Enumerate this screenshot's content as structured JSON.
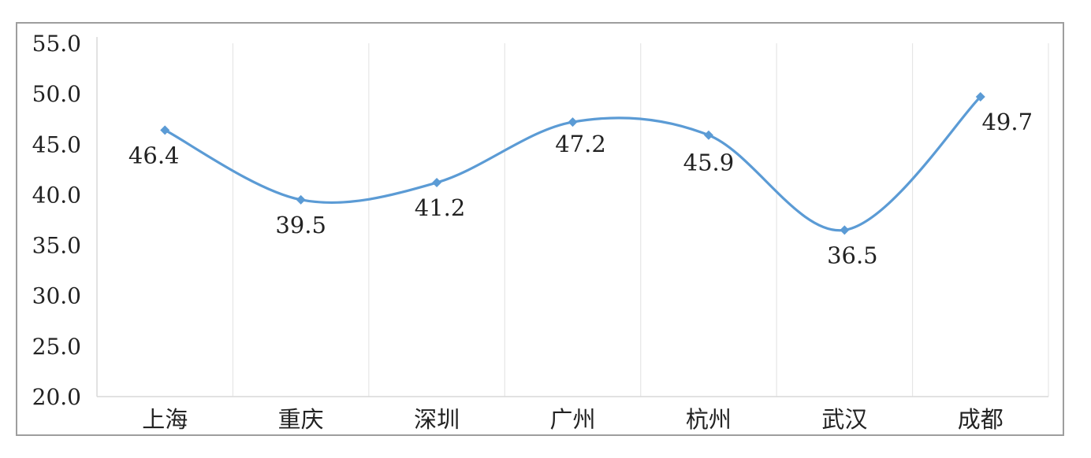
{
  "chart_data": {
    "type": "line",
    "smooth": true,
    "title": "",
    "xlabel": "",
    "ylabel": "",
    "categories": [
      "上海",
      "重庆",
      "深圳",
      "广州",
      "杭州",
      "武汉",
      "成都"
    ],
    "series": [
      {
        "values": [
          46.4,
          39.5,
          41.2,
          47.2,
          45.9,
          36.5,
          49.7
        ],
        "color": "#5b9bd5",
        "marker": "diamond"
      }
    ],
    "data_labels": [
      "46.4",
      "39.5",
      "41.2",
      "47.2",
      "45.9",
      "36.5",
      "49.7"
    ],
    "y_ticks": [
      "55.0",
      "50.0",
      "45.0",
      "40.0",
      "35.0",
      "30.0",
      "25.0",
      "20.0"
    ],
    "ylim": [
      20,
      55
    ],
    "grid": "vertical",
    "legend": "none",
    "axis_color": "#d9d9d9",
    "grid_color": "#e6e6e6"
  }
}
